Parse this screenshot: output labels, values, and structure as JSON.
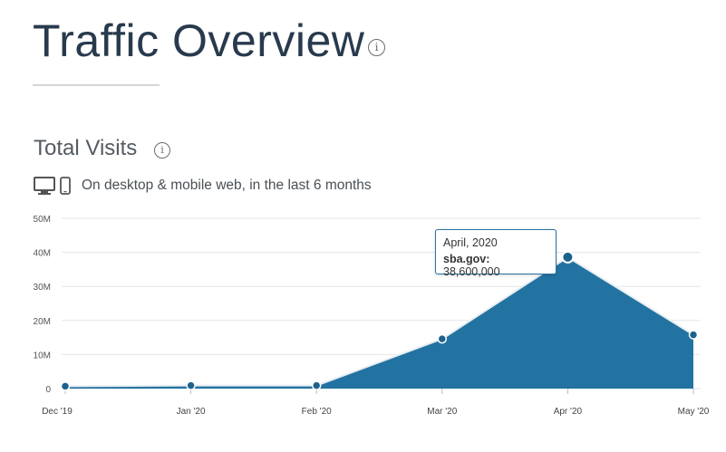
{
  "header": {
    "title": "Traffic Overview"
  },
  "section": {
    "title": "Total Visits",
    "subtitle": "On desktop & mobile web, in the last 6 months",
    "device_icons": [
      "desktop-icon",
      "mobile-icon"
    ]
  },
  "tooltip": {
    "date": "April, 2020",
    "site": "sba.gov:",
    "value": "38,600,000"
  },
  "colors": {
    "area_fill": "#2373a2",
    "marker": "#1d628d",
    "title": "#283a4d"
  },
  "chart_data": {
    "type": "area",
    "categories": [
      "Dec '19",
      "Jan '20",
      "Feb '20",
      "Mar '20",
      "Apr '20",
      "May '20"
    ],
    "series": [
      {
        "name": "sba.gov",
        "values": [
          700000,
          900000,
          900000,
          14600000,
          38600000,
          15800000
        ]
      }
    ],
    "yticks": [
      "0",
      "10M",
      "20M",
      "30M",
      "40M",
      "50M"
    ],
    "ylim": [
      0,
      50000000
    ],
    "grid": true,
    "highlight_index": 4
  }
}
